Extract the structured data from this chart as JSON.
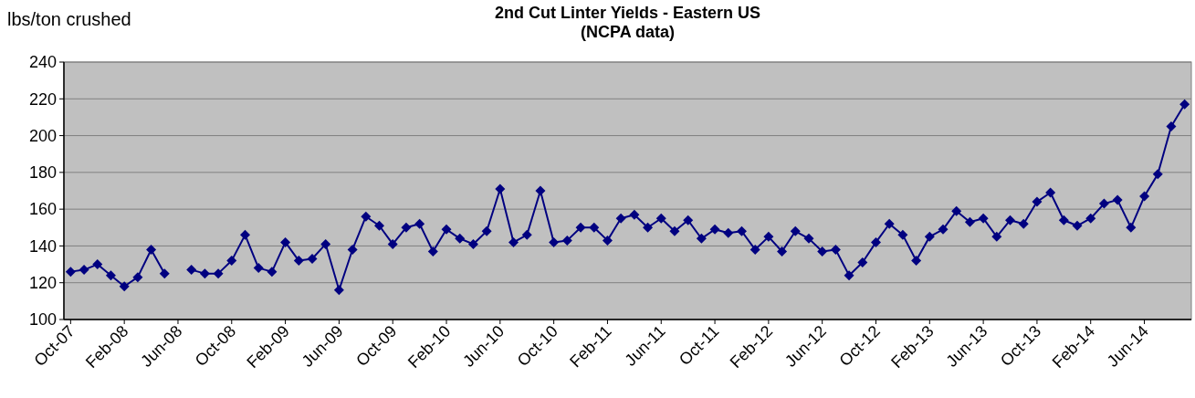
{
  "chart_data": {
    "type": "line",
    "title": "2nd Cut Linter Yields - Eastern US\n(NCPA data)",
    "ylabel": "lbs/ton crushed",
    "categories": [
      "Oct-07",
      null,
      null,
      null,
      "Feb-08",
      null,
      null,
      null,
      "Jun-08",
      null,
      null,
      null,
      "Oct-08",
      null,
      null,
      null,
      "Feb-09",
      null,
      null,
      null,
      "Jun-09",
      null,
      null,
      null,
      "Oct-09",
      null,
      null,
      null,
      "Feb-10",
      null,
      null,
      null,
      "Jun-10",
      null,
      null,
      null,
      "Oct-10",
      null,
      null,
      null,
      "Feb-11",
      null,
      null,
      null,
      "Jun-11",
      null,
      null,
      null,
      "Oct-11",
      null,
      null,
      null,
      "Feb-12",
      null,
      null,
      null,
      "Jun-12",
      null,
      null,
      null,
      "Oct-12",
      null,
      null,
      null,
      "Feb-13",
      null,
      null,
      null,
      "Jun-13",
      null,
      null,
      null,
      "Oct-13",
      null,
      null,
      null,
      "Feb-14",
      null,
      null,
      null,
      "Jun-14",
      null,
      null,
      null
    ],
    "series": [
      {
        "color": "#000080",
        "values": [
          126,
          127,
          130,
          124,
          118,
          123,
          138,
          125,
          null,
          127,
          125,
          125,
          132,
          146,
          128,
          126,
          142,
          132,
          133,
          141,
          116,
          138,
          156,
          151,
          141,
          150,
          152,
          137,
          149,
          144,
          141,
          148,
          171,
          142,
          146,
          170,
          142,
          143,
          150,
          150,
          143,
          155,
          157,
          150,
          155,
          148,
          154,
          144,
          149,
          147,
          148,
          138,
          145,
          137,
          148,
          144,
          137,
          138,
          124,
          131,
          142,
          152,
          146,
          132,
          145,
          149,
          159,
          153,
          155,
          145,
          154,
          152,
          164,
          169,
          154,
          151,
          155,
          163,
          165,
          150,
          167,
          179,
          205,
          217
        ]
      }
    ],
    "ylim": [
      100,
      240
    ],
    "yticks": [
      100,
      120,
      140,
      160,
      180,
      200,
      220,
      240
    ],
    "grid": "y",
    "marker": "diamond",
    "line_style": "solid"
  }
}
